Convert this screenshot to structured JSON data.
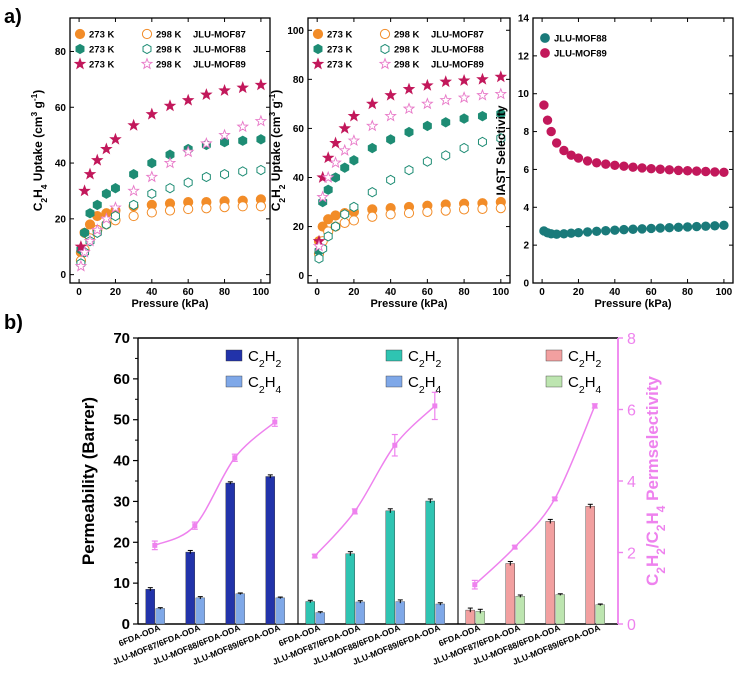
{
  "panel_labels": {
    "a": "a)",
    "b": "b)"
  },
  "colors": {
    "orange": "#F28C28",
    "teal": "#1E8C74",
    "magenta": "#C2185B",
    "pinkLight": "#E879C8",
    "tealDark": "#1A7A7A",
    "pinkLine": "#EE82EE",
    "blueDark": "#2233AA",
    "blueLight": "#7FA8E8",
    "tealBar": "#2FC4B2",
    "salmon": "#F2A0A0",
    "greenLight": "#BDE5B0"
  },
  "chart_data": [
    {
      "id": "c2h4-uptake",
      "type": "scatter",
      "ylabel": "C2H4 Uptake (cm3 g-1)",
      "xlabel": "Pressure (kPa)",
      "xlim": [
        -5,
        105
      ],
      "ylim": [
        -3,
        92
      ],
      "xticks": [
        "0",
        "20",
        "40",
        "60",
        "80",
        "100"
      ],
      "yticks": [
        "0",
        "20",
        "40",
        "60",
        "80"
      ],
      "legend": [
        {
          "marker": "circle",
          "temp": "273 K",
          "temp2": "298 K",
          "name": "JLU-MOF87"
        },
        {
          "marker": "hexagon",
          "temp": "273 K",
          "temp2": "298 K",
          "name": "JLU-MOF88"
        },
        {
          "marker": "star",
          "temp": "273 K",
          "temp2": "298 K",
          "name": "JLU-MOF89"
        }
      ],
      "series": [
        {
          "material": "JLU-MOF87",
          "temperature": "273 K",
          "filled": true,
          "marker": "circle",
          "color": "#F28C28",
          "x": [
            1,
            3,
            6,
            10,
            15,
            20,
            30,
            40,
            50,
            60,
            70,
            80,
            90,
            100
          ],
          "y": [
            8,
            15,
            18,
            21,
            22,
            23,
            24.5,
            25,
            25.5,
            26,
            26,
            26.3,
            26.5,
            27
          ]
        },
        {
          "material": "JLU-MOF87",
          "temperature": "298 K",
          "filled": false,
          "marker": "circle",
          "color": "#F28C28",
          "x": [
            1,
            3,
            6,
            10,
            15,
            20,
            30,
            40,
            50,
            60,
            70,
            80,
            90,
            100
          ],
          "y": [
            5,
            9,
            13,
            16,
            18,
            19.5,
            21,
            22.3,
            23,
            23.5,
            23.8,
            24.2,
            24.5,
            24.5
          ]
        },
        {
          "material": "JLU-MOF88",
          "temperature": "273 K",
          "filled": true,
          "marker": "hexagon",
          "color": "#1E8C74",
          "x": [
            1,
            3,
            6,
            10,
            15,
            20,
            30,
            40,
            50,
            60,
            70,
            80,
            90,
            100
          ],
          "y": [
            9,
            15,
            22,
            25,
            29,
            31,
            36,
            40,
            43,
            45,
            46.5,
            47.5,
            48,
            48.5
          ]
        },
        {
          "material": "JLU-MOF88",
          "temperature": "298 K",
          "filled": false,
          "marker": "hexagon",
          "color": "#1E8C74",
          "x": [
            1,
            3,
            6,
            10,
            15,
            20,
            30,
            40,
            50,
            60,
            70,
            80,
            90,
            100
          ],
          "y": [
            4,
            8,
            12,
            15,
            18,
            21,
            25,
            29,
            31,
            33,
            35,
            36,
            37,
            37.5
          ]
        },
        {
          "material": "JLU-MOF89",
          "temperature": "273 K",
          "filled": true,
          "marker": "star",
          "color": "#C2185B",
          "x": [
            1,
            3,
            6,
            10,
            15,
            20,
            30,
            40,
            50,
            60,
            70,
            80,
            90,
            100
          ],
          "y": [
            10,
            30,
            36,
            41,
            45,
            48.5,
            53.5,
            57.5,
            60.5,
            62.5,
            64.5,
            66,
            67,
            68
          ]
        },
        {
          "material": "JLU-MOF89",
          "temperature": "298 K",
          "filled": false,
          "marker": "star",
          "color": "#E879C8",
          "x": [
            1,
            3,
            6,
            10,
            15,
            20,
            30,
            40,
            50,
            60,
            70,
            80,
            90,
            100
          ],
          "y": [
            3,
            8,
            12,
            16,
            20,
            24,
            30,
            35,
            40,
            44,
            47,
            50,
            53,
            55
          ]
        }
      ]
    },
    {
      "id": "c2h2-uptake",
      "type": "scatter",
      "ylabel": "C2H2 Uptake (cm3 g-1)",
      "xlabel": "Pressure (kPa)",
      "xlim": [
        -5,
        105
      ],
      "ylim": [
        -3,
        105
      ],
      "xticks": [
        "0",
        "20",
        "40",
        "60",
        "80",
        "100"
      ],
      "yticks": [
        "0",
        "20",
        "40",
        "60",
        "80",
        "100"
      ],
      "legend": [
        {
          "marker": "circle",
          "temp": "273 K",
          "temp2": "298 K",
          "name": "JLU-MOF87"
        },
        {
          "marker": "hexagon",
          "temp": "273 K",
          "temp2": "298 K",
          "name": "JLU-MOF88"
        },
        {
          "marker": "star",
          "temp": "273 K",
          "temp2": "298 K",
          "name": "JLU-MOF89"
        }
      ],
      "series": [
        {
          "material": "JLU-MOF87",
          "temperature": "273 K",
          "filled": true,
          "marker": "circle",
          "color": "#F28C28",
          "x": [
            1,
            3,
            6,
            10,
            15,
            20,
            30,
            40,
            50,
            60,
            70,
            80,
            90,
            100
          ],
          "y": [
            14,
            20,
            23,
            24.5,
            25.5,
            26,
            27,
            27.5,
            28,
            28.5,
            29,
            29.3,
            29.5,
            30
          ]
        },
        {
          "material": "JLU-MOF87",
          "temperature": "298 K",
          "filled": false,
          "marker": "circle",
          "color": "#F28C28",
          "x": [
            1,
            3,
            6,
            10,
            15,
            20,
            30,
            40,
            50,
            60,
            70,
            80,
            90,
            100
          ],
          "y": [
            9,
            14,
            18,
            20,
            21.5,
            22.5,
            24,
            25,
            25.5,
            26,
            26.5,
            27,
            27.2,
            27.5
          ]
        },
        {
          "material": "JLU-MOF88",
          "temperature": "273 K",
          "filled": true,
          "marker": "hexagon",
          "color": "#1E8C74",
          "x": [
            1,
            3,
            6,
            10,
            15,
            20,
            30,
            40,
            50,
            60,
            70,
            80,
            90,
            100
          ],
          "y": [
            10,
            30,
            35,
            40,
            44,
            47,
            52,
            55.5,
            58.5,
            61,
            62.5,
            64,
            65,
            66
          ]
        },
        {
          "material": "JLU-MOF88",
          "temperature": "298 K",
          "filled": false,
          "marker": "hexagon",
          "color": "#1E8C74",
          "x": [
            1,
            3,
            6,
            10,
            15,
            20,
            30,
            40,
            50,
            60,
            70,
            80,
            90,
            100
          ],
          "y": [
            7,
            11,
            16,
            20,
            25,
            28,
            34,
            39,
            43,
            46.5,
            49,
            52,
            54.5,
            56
          ]
        },
        {
          "material": "JLU-MOF89",
          "temperature": "273 K",
          "filled": true,
          "marker": "star",
          "color": "#C2185B",
          "x": [
            1,
            3,
            6,
            10,
            15,
            20,
            30,
            40,
            50,
            60,
            70,
            80,
            90,
            100
          ],
          "y": [
            14,
            40,
            48,
            54,
            60,
            65,
            70,
            73.5,
            76,
            77.5,
            79,
            79.5,
            80,
            81
          ]
        },
        {
          "material": "JLU-MOF89",
          "temperature": "298 K",
          "filled": false,
          "marker": "star",
          "color": "#E879C8",
          "x": [
            1,
            3,
            6,
            10,
            15,
            20,
            30,
            40,
            50,
            60,
            70,
            80,
            90,
            100
          ],
          "y": [
            12,
            32,
            40,
            46,
            51,
            55,
            61,
            65,
            68,
            70,
            71.5,
            72.5,
            73.5,
            74
          ]
        }
      ]
    },
    {
      "id": "iast-selectivity",
      "type": "scatter",
      "ylabel": "IAST Selectivity",
      "xlabel": "Pressure (kPa)",
      "xlim": [
        -5,
        105
      ],
      "ylim": [
        0,
        14
      ],
      "xticks": [
        "0",
        "20",
        "40",
        "60",
        "80",
        "100"
      ],
      "yticks": [
        "0",
        "2",
        "4",
        "6",
        "8",
        "10",
        "12",
        "14"
      ],
      "legend_labels": [
        "JLU-MOF88",
        "JLU-MOF89"
      ],
      "series": [
        {
          "name": "JLU-MOF88",
          "color": "#1A7A7A",
          "x": [
            1,
            3,
            5,
            8,
            12,
            16,
            20,
            25,
            30,
            35,
            40,
            45,
            50,
            55,
            60,
            65,
            70,
            75,
            80,
            85,
            90,
            95,
            100
          ],
          "y": [
            2.75,
            2.65,
            2.6,
            2.58,
            2.6,
            2.63,
            2.66,
            2.7,
            2.73,
            2.76,
            2.79,
            2.82,
            2.84,
            2.86,
            2.88,
            2.9,
            2.92,
            2.94,
            2.96,
            2.98,
            3.0,
            3.02,
            3.05
          ]
        },
        {
          "name": "JLU-MOF89",
          "color": "#C2185B",
          "x": [
            1,
            3,
            5,
            8,
            12,
            16,
            20,
            25,
            30,
            35,
            40,
            45,
            50,
            55,
            60,
            65,
            70,
            75,
            80,
            85,
            90,
            95,
            100
          ],
          "y": [
            9.4,
            8.6,
            8.0,
            7.4,
            7.0,
            6.75,
            6.6,
            6.45,
            6.35,
            6.28,
            6.22,
            6.17,
            6.12,
            6.08,
            6.04,
            6.01,
            5.98,
            5.95,
            5.93,
            5.91,
            5.89,
            5.87,
            5.85
          ]
        }
      ]
    },
    {
      "id": "permeability",
      "type": "bar",
      "ylabel": "Permeability (Barrer)",
      "y2label": "C2H2/C2H4 Permselectivity",
      "ylim": [
        0,
        70
      ],
      "y2lim": [
        0,
        8
      ],
      "yticks": [
        "0",
        "10",
        "20",
        "30",
        "40",
        "50",
        "60",
        "70"
      ],
      "y2ticks": [
        "0",
        "2",
        "4",
        "6",
        "8"
      ],
      "categories": [
        "6FDA-ODA",
        "JLU-MOF87/6FDA-ODA",
        "JLU-MOF88/6FDA-ODA",
        "JLU-MOF89/6FDA-ODA"
      ],
      "legend_labels": [
        "C2H2",
        "C2H4"
      ],
      "groups": [
        {
          "c2h2": [
            8.5,
            17.6,
            34.5,
            36.1
          ],
          "c2h2_err": [
            0.4,
            0.4,
            0.3,
            0.4
          ],
          "c2h4": [
            3.8,
            6.4,
            7.4,
            6.4
          ],
          "c2h4_err": [
            0.2,
            0.3,
            0.2,
            0.2
          ],
          "selectivity": [
            2.2,
            2.75,
            4.65,
            5.65
          ],
          "sel_err": [
            0.12,
            0.1,
            0.1,
            0.12
          ],
          "c2h2_color": "#2233AA",
          "c2h4_color": "#7FA8E8"
        },
        {
          "c2h2": [
            5.5,
            17.2,
            27.7,
            30.1
          ],
          "c2h2_err": [
            0.3,
            0.5,
            0.5,
            0.5
          ],
          "c2h4": [
            2.8,
            5.4,
            5.5,
            4.9
          ],
          "c2h4_err": [
            0.2,
            0.3,
            0.4,
            0.3
          ],
          "selectivity": [
            1.9,
            3.15,
            5.0,
            6.1
          ],
          "sel_err": [
            0.05,
            0.07,
            0.3,
            0.38
          ],
          "c2h2_color": "#2FC4B2",
          "c2h4_color": "#7FA8E8"
        },
        {
          "c2h2": [
            3.4,
            14.8,
            25.1,
            28.8
          ],
          "c2h2_err": [
            0.5,
            0.5,
            0.5,
            0.5
          ],
          "c2h4": [
            3.1,
            6.8,
            7.2,
            4.7
          ],
          "c2h4_err": [
            0.5,
            0.3,
            0.2,
            0.2
          ],
          "selectivity": [
            1.1,
            2.15,
            3.5,
            6.1
          ],
          "sel_err": [
            0.12,
            0.05,
            0.05,
            0.06
          ],
          "c2h2_color": "#F2A0A0",
          "c2h4_color": "#BDE5B0"
        }
      ]
    }
  ]
}
